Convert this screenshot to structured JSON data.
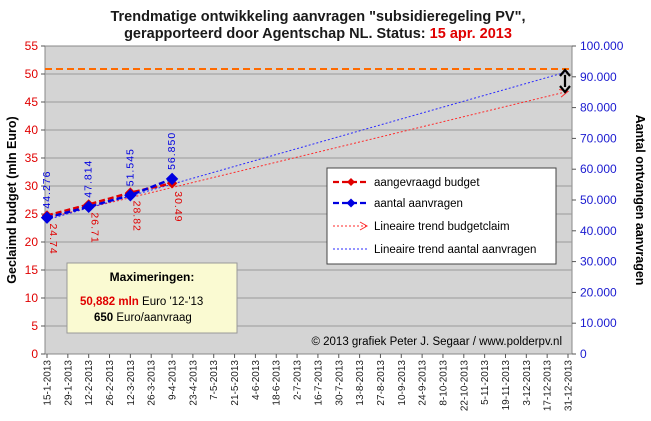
{
  "chart_data": {
    "type": "line",
    "title_line1": "Trendmatige ontwikkeling aanvragen \"subsidieregeling PV\",",
    "title_line2": "gerapporteerd door Agentschap NL. Status:",
    "title_date": "15 apr. 2013",
    "ylabel_left": "Geclaimd budget (mln Euro)",
    "ylabel_right": "Aantal ontvangen aanvragen",
    "ylim_left": [
      0,
      55
    ],
    "ylim_right": [
      0,
      100000
    ],
    "yticks_left": [
      "0",
      "5",
      "10",
      "15",
      "20",
      "25",
      "30",
      "35",
      "40",
      "45",
      "50",
      "55"
    ],
    "yticks_right": [
      "0",
      "10.000",
      "20.000",
      "30.000",
      "40.000",
      "50.000",
      "60.000",
      "70.000",
      "80.000",
      "90.000",
      "100.000"
    ],
    "x_categories": [
      "15-1-2013",
      "29-1-2013",
      "12-2-2013",
      "26-2-2013",
      "12-3-2013",
      "26-3-2013",
      "9-4-2013",
      "23-4-2013",
      "7-5-2013",
      "21-5-2013",
      "4-6-2013",
      "18-6-2013",
      "2-7-2013",
      "16-7-2013",
      "30-7-2013",
      "13-8-2013",
      "27-8-2013",
      "10-9-2013",
      "24-9-2013",
      "8-10-2013",
      "22-10-2013",
      "5-11-2013",
      "19-11-2013",
      "3-12-2013",
      "17-12-2013",
      "31-12-2013"
    ],
    "series": [
      {
        "name": "aangevraagd budget",
        "axis": "left",
        "color": "#e00000",
        "x": [
          "15-1-2013",
          "12-2-2013",
          "12-3-2013",
          "9-4-2013"
        ],
        "values": [
          24.74,
          26.71,
          28.82,
          30.49
        ],
        "labels": [
          "24.74",
          "26.71",
          "28.82",
          "30.49"
        ]
      },
      {
        "name": "aantal aanvragen",
        "axis": "right",
        "color": "#0000e0",
        "x": [
          "15-1-2013",
          "12-2-2013",
          "12-3-2013",
          "9-4-2013"
        ],
        "values": [
          44276,
          47814,
          51545,
          56850
        ],
        "labels": [
          "44.276",
          "47.814",
          "51.545",
          "56.850"
        ]
      },
      {
        "name": "Lineaire trend budgetclaim",
        "axis": "left",
        "color": "#ff2a2a",
        "x": [
          "15-1-2013",
          "31-12-2013"
        ],
        "values": [
          24.3,
          46.9
        ]
      },
      {
        "name": "Lineaire trend aantal aanvragen",
        "axis": "right",
        "color": "#2a2aff",
        "x": [
          "15-1-2013",
          "31-12-2013"
        ],
        "values": [
          43600,
          91700
        ]
      }
    ],
    "reference_line_left": 50.882,
    "legend_position": "right-middle",
    "grid": "y-major"
  },
  "note": {
    "title": "Maximeringen:",
    "line1_value": "50,882 mln",
    "line1_rest": "Euro '12-'13",
    "line2_value": "650",
    "line2_rest": "Euro/aanvraag"
  },
  "credit": "© 2013 grafiek Peter J. Segaar / www.polderpv.nl",
  "colors": {
    "plot_bg": "#d4d4d4",
    "reference_orange": "#ff6a00",
    "note_bg": "#fafad2"
  }
}
